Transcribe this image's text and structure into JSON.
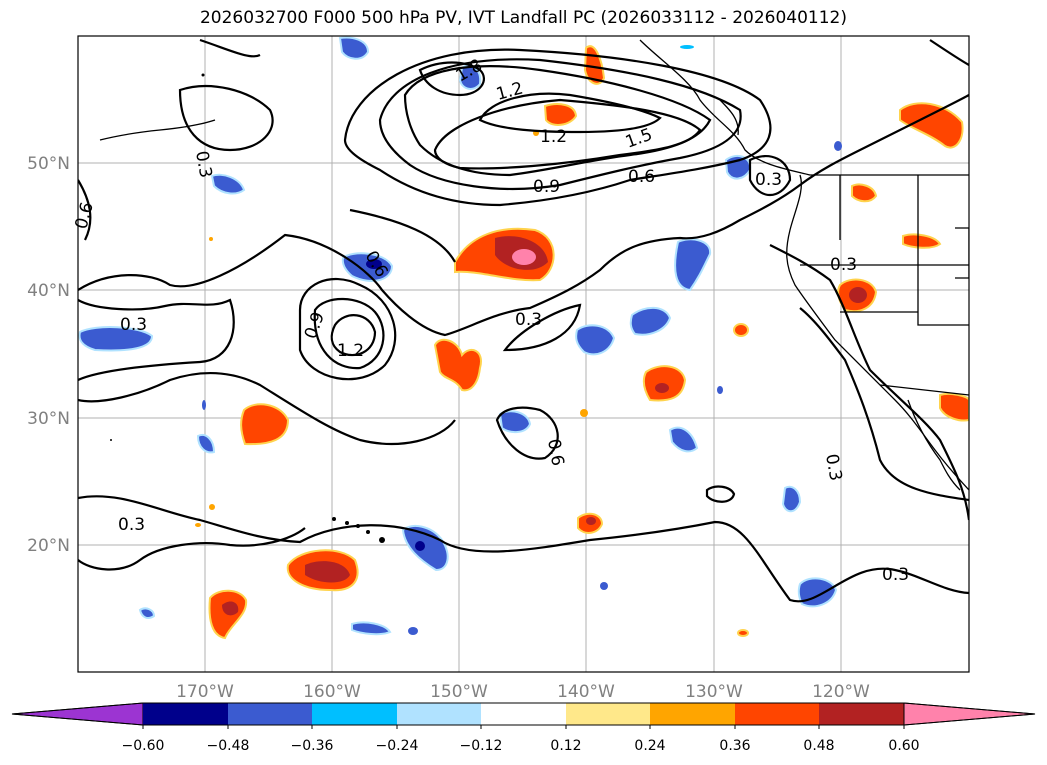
{
  "title": "2026032700 F000 500 hPa PV, IVT Landfall PC (2026033112 - 2026040112)",
  "map": {
    "lat_labels": [
      "50°N",
      "40°N",
      "30°N",
      "20°N"
    ],
    "lon_labels": [
      "170°W",
      "160°W",
      "150°W",
      "140°W",
      "130°W",
      "120°W"
    ],
    "contour_labels": [
      "0.3",
      "0.6",
      "0.9",
      "1.2",
      "1.5",
      "1.8"
    ],
    "projection_extent": {
      "lon": [
        -180,
        -110
      ],
      "lat": [
        10,
        60
      ]
    }
  },
  "colorbar": {
    "ticks": [
      "−0.60",
      "−0.48",
      "−0.36",
      "−0.24",
      "−0.12",
      "0.12",
      "0.24",
      "0.36",
      "0.48",
      "0.60"
    ],
    "colors": [
      "#9c34d2",
      "#00008b",
      "#3b5bd0",
      "#00bfff",
      "#b0e2ff",
      "#ffffff",
      "#ffe88a",
      "#ffa500",
      "#ff4500",
      "#b22222",
      "#ff82ab"
    ]
  }
}
